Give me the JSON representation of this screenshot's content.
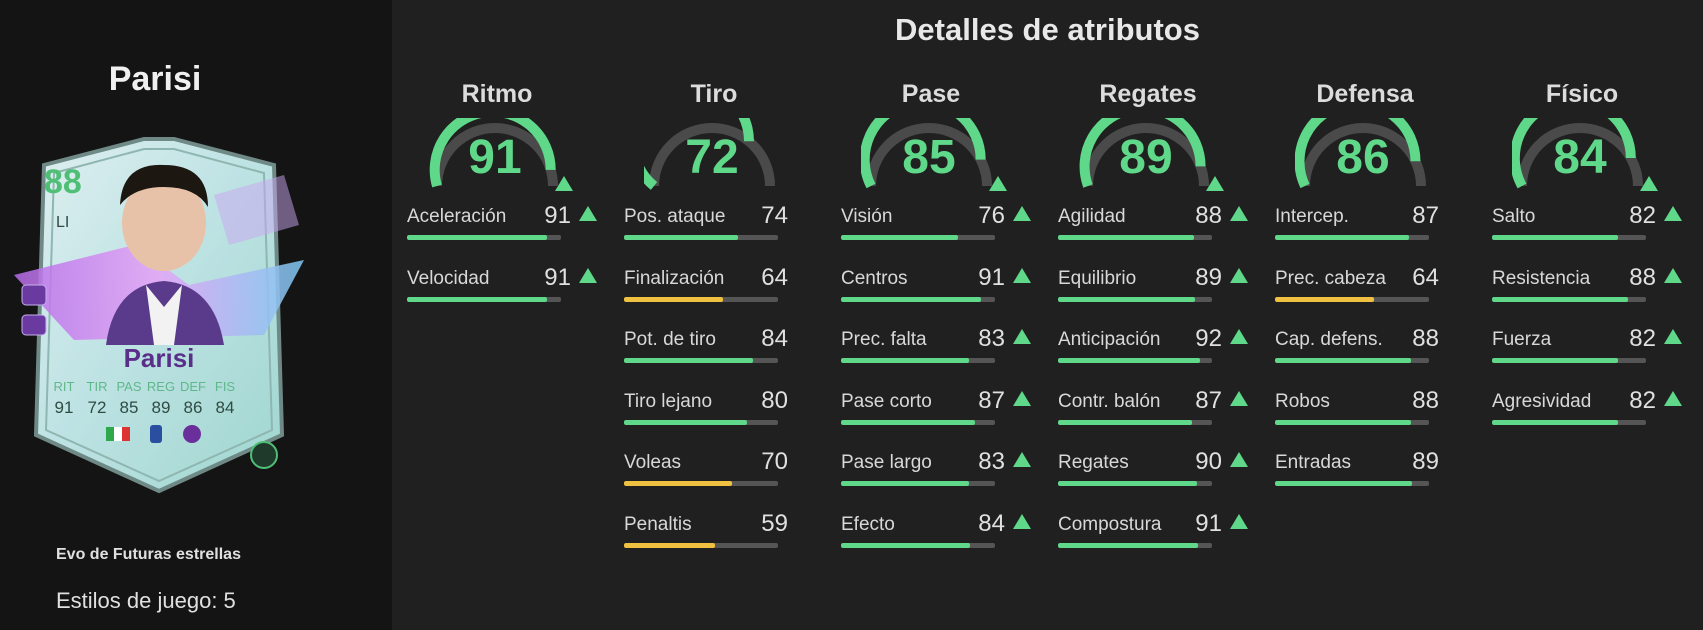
{
  "player": {
    "name": "Parisi",
    "evo": "Evo de Futuras estrellas",
    "playstyles": "Estilos de juego: 5"
  },
  "card": {
    "rating": "88",
    "position": "LI",
    "name": "Parisi",
    "stat_labels": [
      "RIT",
      "TIR",
      "PAS",
      "REG",
      "DEF",
      "FIS"
    ],
    "stat_values": [
      "91",
      "72",
      "85",
      "89",
      "86",
      "84"
    ]
  },
  "colors": {
    "green": "#5fd88a",
    "yellow": "#f0c040",
    "track": "#555555",
    "gauge_track": "#4a4a4a"
  },
  "section_title": "Detalles de atributos",
  "categories": [
    {
      "title": "Ritmo",
      "value": "91",
      "fraction": 0.91,
      "up": true,
      "stats": [
        {
          "label": "Aceleración",
          "value": "91",
          "fraction": 0.91,
          "color": "green",
          "up": true
        },
        {
          "label": "Velocidad",
          "value": "91",
          "fraction": 0.91,
          "color": "green",
          "up": true
        }
      ]
    },
    {
      "title": "Tiro",
      "value": "72",
      "fraction": 0.72,
      "up": false,
      "stats": [
        {
          "label": "Pos. ataque",
          "value": "74",
          "fraction": 0.74,
          "color": "green",
          "up": false
        },
        {
          "label": "Finalización",
          "value": "64",
          "fraction": 0.64,
          "color": "yellow",
          "up": false
        },
        {
          "label": "Pot. de tiro",
          "value": "84",
          "fraction": 0.84,
          "color": "green",
          "up": false
        },
        {
          "label": "Tiro lejano",
          "value": "80",
          "fraction": 0.8,
          "color": "green",
          "up": false
        },
        {
          "label": "Voleas",
          "value": "70",
          "fraction": 0.7,
          "color": "yellow",
          "up": false
        },
        {
          "label": "Penaltis",
          "value": "59",
          "fraction": 0.59,
          "color": "yellow",
          "up": false
        }
      ]
    },
    {
      "title": "Pase",
      "value": "85",
      "fraction": 0.85,
      "up": true,
      "stats": [
        {
          "label": "Visión",
          "value": "76",
          "fraction": 0.76,
          "color": "green",
          "up": true
        },
        {
          "label": "Centros",
          "value": "91",
          "fraction": 0.91,
          "color": "green",
          "up": true
        },
        {
          "label": "Prec. falta",
          "value": "83",
          "fraction": 0.83,
          "color": "green",
          "up": true
        },
        {
          "label": "Pase corto",
          "value": "87",
          "fraction": 0.87,
          "color": "green",
          "up": true
        },
        {
          "label": "Pase largo",
          "value": "83",
          "fraction": 0.83,
          "color": "green",
          "up": true
        },
        {
          "label": "Efecto",
          "value": "84",
          "fraction": 0.84,
          "color": "green",
          "up": true
        }
      ]
    },
    {
      "title": "Regates",
      "value": "89",
      "fraction": 0.89,
      "up": true,
      "stats": [
        {
          "label": "Agilidad",
          "value": "88",
          "fraction": 0.88,
          "color": "green",
          "up": true
        },
        {
          "label": "Equilibrio",
          "value": "89",
          "fraction": 0.89,
          "color": "green",
          "up": true
        },
        {
          "label": "Anticipación",
          "value": "92",
          "fraction": 0.92,
          "color": "green",
          "up": true
        },
        {
          "label": "Contr. balón",
          "value": "87",
          "fraction": 0.87,
          "color": "green",
          "up": true
        },
        {
          "label": "Regates",
          "value": "90",
          "fraction": 0.9,
          "color": "green",
          "up": true
        },
        {
          "label": "Compostura",
          "value": "91",
          "fraction": 0.91,
          "color": "green",
          "up": true
        }
      ]
    },
    {
      "title": "Defensa",
      "value": "86",
      "fraction": 0.86,
      "up": false,
      "stats": [
        {
          "label": "Intercep.",
          "value": "87",
          "fraction": 0.87,
          "color": "green",
          "up": false
        },
        {
          "label": "Prec. cabeza",
          "value": "64",
          "fraction": 0.64,
          "color": "yellow",
          "up": false
        },
        {
          "label": "Cap. defens.",
          "value": "88",
          "fraction": 0.88,
          "color": "green",
          "up": false
        },
        {
          "label": "Robos",
          "value": "88",
          "fraction": 0.88,
          "color": "green",
          "up": false
        },
        {
          "label": "Entradas",
          "value": "89",
          "fraction": 0.89,
          "color": "green",
          "up": false
        }
      ]
    },
    {
      "title": "Físico",
      "value": "84",
      "fraction": 0.84,
      "up": true,
      "stats": [
        {
          "label": "Salto",
          "value": "82",
          "fraction": 0.82,
          "color": "green",
          "up": true
        },
        {
          "label": "Resistencia",
          "value": "88",
          "fraction": 0.88,
          "color": "green",
          "up": true
        },
        {
          "label": "Fuerza",
          "value": "82",
          "fraction": 0.82,
          "color": "green",
          "up": true
        },
        {
          "label": "Agresividad",
          "value": "82",
          "fraction": 0.82,
          "color": "green",
          "up": true
        }
      ]
    }
  ]
}
